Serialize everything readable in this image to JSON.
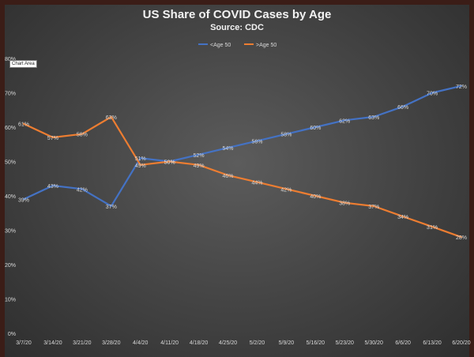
{
  "title": "US Share of COVID Cases by Age",
  "subtitle": "Source: CDC",
  "tooltip": "Chart Area",
  "colors": {
    "under_50": "#4472c4",
    "over_50": "#ed7d31",
    "background": "#474747",
    "text": "#d9d9d9"
  },
  "chart_data": {
    "type": "line",
    "title": "US Share of COVID Cases by Age",
    "subtitle": "Source: CDC",
    "xlabel": "",
    "ylabel": "",
    "ylim": [
      0,
      80
    ],
    "y_ticks": [
      "0%",
      "10%",
      "20%",
      "30%",
      "40%",
      "50%",
      "60%",
      "70%",
      "80%"
    ],
    "grid": false,
    "legend_position": "top",
    "categories": [
      "3/7/20",
      "3/14/20",
      "3/21/20",
      "3/28/20",
      "4/4/20",
      "4/11/20",
      "4/18/20",
      "4/25/20",
      "5/2/20",
      "5/9/20",
      "5/16/20",
      "5/23/20",
      "5/30/20",
      "6/6/20",
      "6/13/20",
      "6/20/20"
    ],
    "series": [
      {
        "name": "<Age 50",
        "color": "#4472c4",
        "values": [
          39,
          43,
          42,
          37,
          51,
          50,
          52,
          54,
          56,
          58,
          60,
          62,
          63,
          66,
          70,
          72
        ],
        "labels": [
          "39%",
          "43%",
          "42%",
          "37%",
          "51%",
          "50%",
          "52%",
          "54%",
          "56%",
          "58%",
          "60%",
          "62%",
          "63%",
          "66%",
          "70%",
          "72%"
        ]
      },
      {
        "name": ">Age 50",
        "color": "#ed7d31",
        "values": [
          61,
          57,
          58,
          63,
          49,
          50,
          49,
          46,
          44,
          42,
          40,
          38,
          37,
          34,
          31,
          28
        ],
        "labels": [
          "61%",
          "57%",
          "58%",
          "63%",
          "49%",
          "50%",
          "49%",
          "46%",
          "44%",
          "42%",
          "40%",
          "38%",
          "37%",
          "34%",
          "31%",
          "28%"
        ]
      }
    ]
  }
}
